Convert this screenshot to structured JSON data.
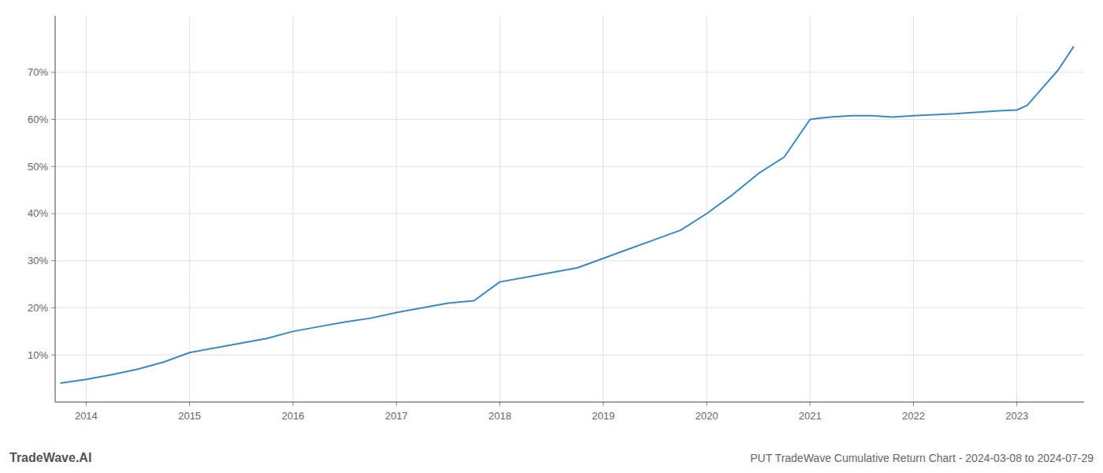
{
  "chart_data": {
    "type": "line",
    "title": "PUT TradeWave Cumulative Return Chart - 2024-03-08 to 2024-07-29",
    "annotations": [
      "TradeWave.AI"
    ],
    "color": "#3a8abf",
    "x": [
      2013.75,
      2014.0,
      2014.25,
      2014.5,
      2014.75,
      2015.0,
      2015.25,
      2015.5,
      2015.75,
      2016.0,
      2016.25,
      2016.5,
      2016.75,
      2017.0,
      2017.25,
      2017.5,
      2017.75,
      2018.0,
      2018.25,
      2018.5,
      2018.75,
      2019.0,
      2019.25,
      2019.5,
      2019.75,
      2020.0,
      2020.25,
      2020.5,
      2020.75,
      2021.0,
      2021.1,
      2021.2,
      2021.4,
      2021.6,
      2021.8,
      2022.0,
      2022.2,
      2022.4,
      2022.6,
      2022.8,
      2023.0,
      2023.1,
      2023.2,
      2023.4,
      2023.55
    ],
    "values": [
      4.0,
      4.8,
      5.8,
      7.0,
      8.5,
      10.5,
      11.5,
      12.5,
      13.5,
      15.0,
      16.0,
      17.0,
      17.8,
      19.0,
      20.0,
      21.0,
      21.5,
      25.5,
      26.5,
      27.5,
      28.5,
      30.5,
      32.5,
      34.5,
      36.5,
      40.0,
      44.0,
      48.5,
      52.0,
      60.0,
      60.3,
      60.5,
      60.8,
      60.8,
      60.5,
      60.8,
      61.0,
      61.2,
      61.5,
      61.8,
      62.0,
      63.0,
      65.5,
      70.5,
      75.5
    ],
    "xlim": [
      2013.7,
      2023.65
    ],
    "ylim": [
      0,
      82
    ],
    "xticks": [
      2014,
      2015,
      2016,
      2017,
      2018,
      2019,
      2020,
      2021,
      2022,
      2023
    ],
    "yticks": [
      {
        "value": 10,
        "label": "10%"
      },
      {
        "value": 20,
        "label": "20%"
      },
      {
        "value": 30,
        "label": "30%"
      },
      {
        "value": 40,
        "label": "40%"
      },
      {
        "value": 50,
        "label": "50%"
      },
      {
        "value": 60,
        "label": "60%"
      },
      {
        "value": 70,
        "label": "70%"
      }
    ],
    "grid": true
  }
}
